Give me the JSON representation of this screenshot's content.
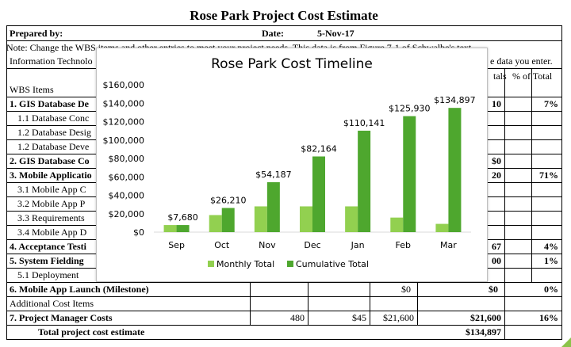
{
  "sheet": {
    "title": "Rose Park Project Cost Estimate",
    "prepared_by_label": "Prepared by:",
    "date_label": "Date:",
    "date_value": "5-Nov-17",
    "note": "Note: Change the WBS items and other entries to meet your project needs. This data is from Figure 7-1 of Schwalbe's text",
    "info_left": "Information Technolo",
    "info_right": "e data you enter.",
    "header_totals": "tals",
    "header_pct": "% of Total",
    "wbs_header": "WBS Items",
    "rows": [
      {
        "label": "1. GIS Database De",
        "bold": true,
        "total": "10",
        "pct": "7%"
      },
      {
        "label": "1.1 Database Conc",
        "bold": false,
        "total": "",
        "pct": ""
      },
      {
        "label": "1.2 Database Desig",
        "bold": false,
        "total": "",
        "pct": ""
      },
      {
        "label": "1.2 Database Deve",
        "bold": false,
        "total": "",
        "pct": ""
      },
      {
        "label": "2. GIS Database Co",
        "bold": true,
        "total": "$0",
        "pct": ""
      },
      {
        "label": "3. Mobile Applicatio",
        "bold": true,
        "total": "20",
        "pct": "71%"
      },
      {
        "label": "3.1 Mobile App C",
        "bold": false,
        "total": "",
        "pct": ""
      },
      {
        "label": "3.2 Mobile App P",
        "bold": false,
        "total": "",
        "pct": ""
      },
      {
        "label": "3.3 Requirements",
        "bold": false,
        "total": "",
        "pct": ""
      },
      {
        "label": "3.4 Mobile App D",
        "bold": false,
        "total": "",
        "pct": ""
      },
      {
        "label": "4. Acceptance Testi",
        "bold": true,
        "total": "67",
        "pct": "4%"
      },
      {
        "label": "5. System Fielding",
        "bold": true,
        "total": "00",
        "pct": "1%"
      },
      {
        "label": "5.1 Deployment",
        "bold": false,
        "total": "",
        "pct": ""
      }
    ],
    "milestone_label": "6. Mobile App Launch (Milestone)",
    "milestone_sub": "$0",
    "milestone_total": "$0",
    "milestone_pct": "0%",
    "additional_label": "Additional Cost Items",
    "pm_label": "7. Project Manager Costs",
    "pm_units": "480",
    "pm_rate": "$45",
    "pm_sub": "$21,600",
    "pm_total": "$21,600",
    "pm_pct": "16%",
    "grand_label": "Total project cost estimate",
    "grand_total": "$134,897"
  },
  "chart_data": {
    "type": "bar",
    "title": "Rose Park Cost Timeline",
    "categories": [
      "Sep",
      "Oct",
      "Nov",
      "Dec",
      "Jan",
      "Feb",
      "Mar"
    ],
    "series": [
      {
        "name": "Monthly Total",
        "color": "#92d050",
        "values": [
          7680,
          18530,
          27977,
          27977,
          27977,
          15789,
          8967
        ]
      },
      {
        "name": "Cumulative Total",
        "color": "#4ea72e",
        "values": [
          7680,
          26210,
          54187,
          82164,
          110141,
          125930,
          134897
        ]
      }
    ],
    "data_labels": [
      "$7,680",
      "$26,210",
      "$54,187",
      "$82,164",
      "$110,141",
      "$125,930",
      "$134,897"
    ],
    "y_ticks": [
      "$0",
      "$20,000",
      "$40,000",
      "$60,000",
      "$80,000",
      "$100,000",
      "$120,000",
      "$140,000",
      "$160,000"
    ],
    "ylim": [
      0,
      160000
    ],
    "legend_placement": "bottom",
    "grid": true
  }
}
